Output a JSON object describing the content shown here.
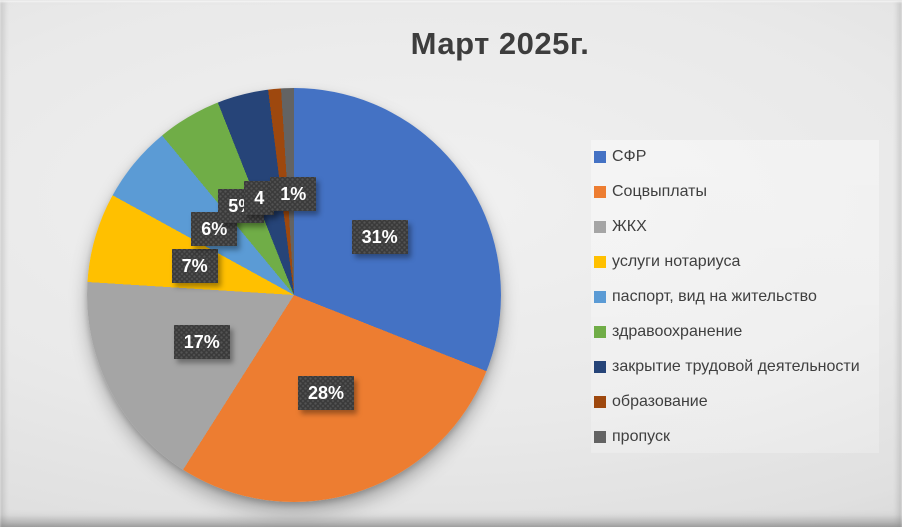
{
  "chart_data": {
    "type": "pie",
    "title": "Март 2025г.",
    "legend_position": "right",
    "total": 100,
    "series": [
      {
        "label": "СФР",
        "value": 31,
        "display": "31%",
        "color": "#4472C4"
      },
      {
        "label": "Соцвыплаты",
        "value": 28,
        "display": "28%",
        "color": "#ED7D31"
      },
      {
        "label": "ЖКХ",
        "value": 17,
        "display": "17%",
        "color": "#A5A5A5"
      },
      {
        "label": "услуги нотариуса",
        "value": 7,
        "display": "7%",
        "color": "#FFC000"
      },
      {
        "label": "паспорт, вид на жительство",
        "value": 6,
        "display": "6%",
        "color": "#5B9BD5"
      },
      {
        "label": "здравоохранение",
        "value": 5,
        "display": "5%",
        "color": "#70AD47"
      },
      {
        "label": "закрытие трудовой деятельности",
        "value": 4,
        "display": "4",
        "color": "#264478"
      },
      {
        "label": "образование",
        "value": 1,
        "display": "1%",
        "color": "#9E480E"
      },
      {
        "label": "пропуск",
        "value": 1,
        "display": "",
        "color": "#636363"
      }
    ],
    "colors": {
      "title_text": "#3d3d3d",
      "legend_text": "#3f3f3f",
      "data_label_bg": "#3a3a3a",
      "data_label_text": "#ffffff",
      "background": "#e6e6e6"
    }
  }
}
